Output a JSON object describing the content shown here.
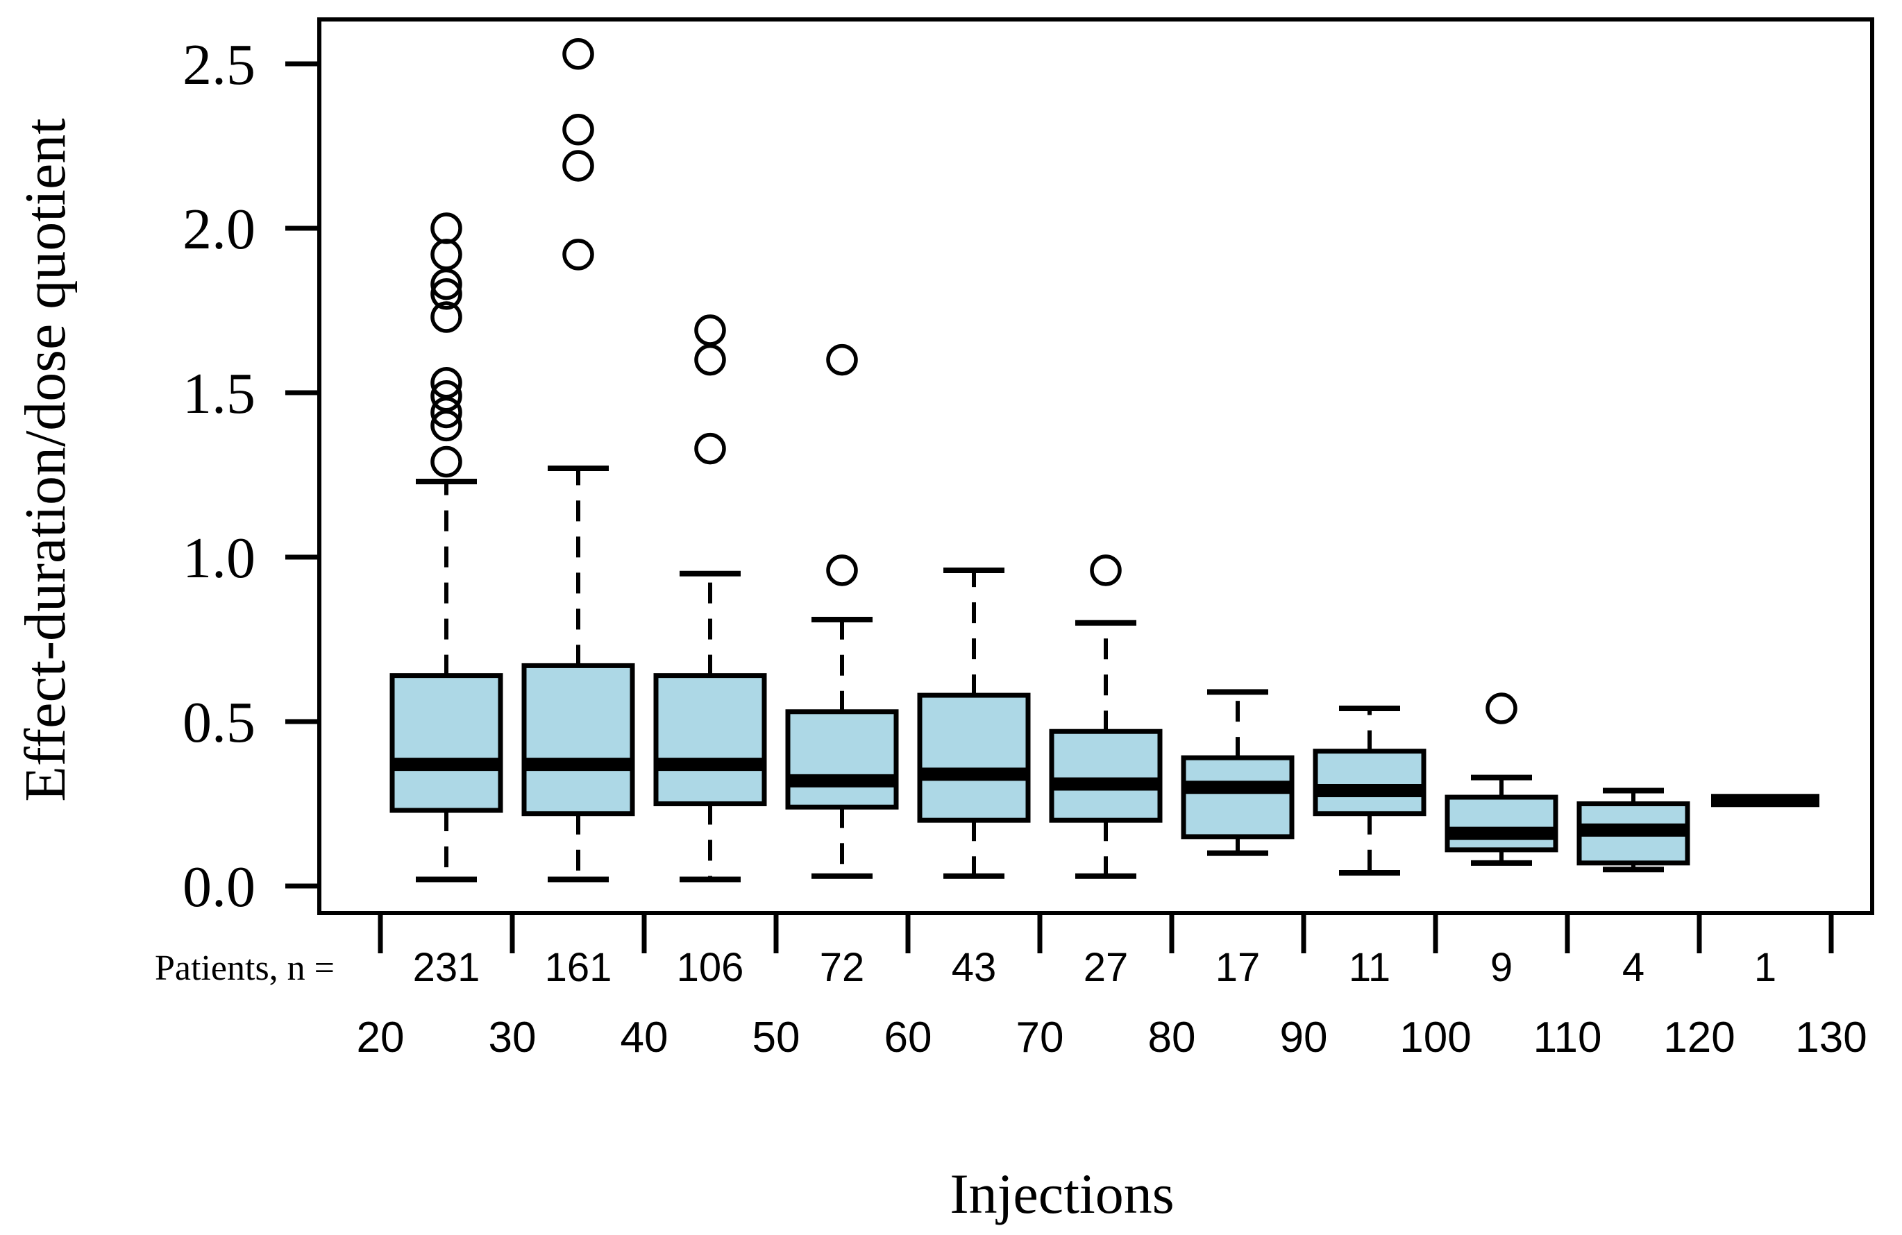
{
  "figure": {
    "background": "#ffffff",
    "frame_color": "#000000"
  },
  "chart_data": {
    "type": "boxplot",
    "title": "",
    "xlabel": "Injections",
    "ylabel": "Effect-duration/dose quotient",
    "patients_label": "Patients, n =",
    "x_ticks": [
      20,
      30,
      40,
      50,
      60,
      70,
      80,
      90,
      100,
      110,
      120,
      130
    ],
    "y_ticks": [
      0.0,
      0.5,
      1.0,
      1.5,
      2.0,
      2.5
    ],
    "xlim": [
      15,
      133
    ],
    "ylim": [
      0,
      2.63
    ],
    "grid": false,
    "legend": null,
    "box_fill": "#ADD8E6",
    "line_color": "#000000",
    "groups": [
      {
        "x": 25,
        "n": 231,
        "whisker_low": 0.02,
        "q1": 0.23,
        "median": 0.37,
        "q3": 0.64,
        "whisker_high": 1.23,
        "outliers": [
          2.0,
          1.92,
          1.83,
          1.8,
          1.73,
          1.53,
          1.49,
          1.44,
          1.4,
          1.29
        ]
      },
      {
        "x": 35,
        "n": 161,
        "whisker_low": 0.02,
        "q1": 0.22,
        "median": 0.37,
        "q3": 0.67,
        "whisker_high": 1.27,
        "outliers": [
          2.53,
          2.3,
          2.19,
          1.92
        ]
      },
      {
        "x": 45,
        "n": 106,
        "whisker_low": 0.02,
        "q1": 0.25,
        "median": 0.37,
        "q3": 0.64,
        "whisker_high": 0.95,
        "outliers": [
          1.69,
          1.6,
          1.33
        ]
      },
      {
        "x": 55,
        "n": 72,
        "whisker_low": 0.03,
        "q1": 0.24,
        "median": 0.32,
        "q3": 0.53,
        "whisker_high": 0.81,
        "outliers": [
          1.6,
          0.96
        ]
      },
      {
        "x": 65,
        "n": 43,
        "whisker_low": 0.03,
        "q1": 0.2,
        "median": 0.34,
        "q3": 0.58,
        "whisker_high": 0.96,
        "outliers": []
      },
      {
        "x": 75,
        "n": 27,
        "whisker_low": 0.03,
        "q1": 0.2,
        "median": 0.31,
        "q3": 0.47,
        "whisker_high": 0.8,
        "outliers": [
          0.96
        ]
      },
      {
        "x": 85,
        "n": 17,
        "whisker_low": 0.1,
        "q1": 0.15,
        "median": 0.3,
        "q3": 0.39,
        "whisker_high": 0.59,
        "outliers": []
      },
      {
        "x": 95,
        "n": 11,
        "whisker_low": 0.04,
        "q1": 0.22,
        "median": 0.29,
        "q3": 0.41,
        "whisker_high": 0.54,
        "outliers": []
      },
      {
        "x": 105,
        "n": 9,
        "whisker_low": 0.07,
        "q1": 0.11,
        "median": 0.16,
        "q3": 0.27,
        "whisker_high": 0.33,
        "outliers": [
          0.54
        ]
      },
      {
        "x": 115,
        "n": 4,
        "whisker_low": 0.05,
        "q1": 0.07,
        "median": 0.17,
        "q3": 0.25,
        "whisker_high": 0.29,
        "outliers": []
      },
      {
        "x": 125,
        "n": 1,
        "whisker_low": 0.26,
        "q1": 0.26,
        "median": 0.26,
        "q3": 0.26,
        "whisker_high": 0.26,
        "outliers": []
      }
    ]
  }
}
